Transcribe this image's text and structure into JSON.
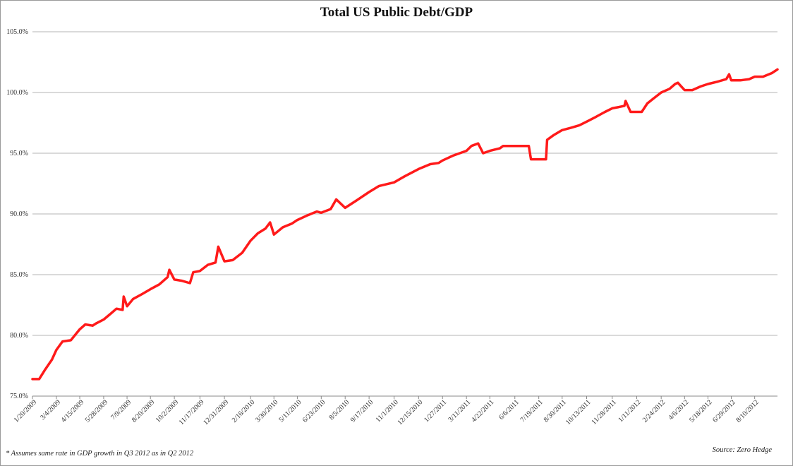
{
  "chart_data": {
    "type": "line",
    "title": "Total US Public Debt/GDP",
    "xlabel": "",
    "ylabel": "",
    "ylim": [
      75,
      105
    ],
    "y_ticks": [
      "75.0%",
      "80.0%",
      "85.0%",
      "90.0%",
      "95.0%",
      "100.0%",
      "105.0%"
    ],
    "x_ticks": [
      "1/20/2009",
      "3/4/2009",
      "4/15/2009",
      "5/28/2009",
      "7/9/2009",
      "8/20/2009",
      "10/2/2009",
      "11/17/2009",
      "12/31/2009",
      "2/16/2010",
      "3/30/2010",
      "5/11/2010",
      "6/23/2010",
      "8/5/2010",
      "9/17/2010",
      "11/1/2010",
      "12/15/2010",
      "1/27/2011",
      "3/11/2011",
      "4/22/2011",
      "6/6/2011",
      "7/19/2011",
      "8/30/2011",
      "10/13/2011",
      "11/28/2011",
      "1/11/2012",
      "2/24/2012",
      "4/6/2012",
      "5/18/2012",
      "6/29/2012",
      "8/10/2012"
    ],
    "grid": true,
    "legend": "none",
    "line_color": "#ff1a1a",
    "series": [
      {
        "x": [
          "1/20/2009",
          "2/1/2009",
          "2/12/2009",
          "2/24/2009",
          "3/4/2009",
          "3/15/2009",
          "3/30/2009",
          "4/15/2009",
          "4/25/2009",
          "5/8/2009",
          "5/15/2009",
          "5/28/2009",
          "6/10/2009",
          "6/20/2009",
          "7/1/2009",
          "7/3/2009",
          "7/9/2009",
          "7/20/2009",
          "8/5/2009",
          "8/20/2009",
          "9/5/2009",
          "9/20/2009",
          "9/23/2009",
          "10/2/2009",
          "10/15/2009",
          "10/30/2009",
          "11/5/2009",
          "11/17/2009",
          "12/1/2009",
          "12/15/2009",
          "12/20/2009",
          "12/31/2009",
          "1/15/2010",
          "2/1/2010",
          "2/16/2010",
          "3/1/2010",
          "3/15/2010",
          "3/23/2010",
          "3/30/2010",
          "4/15/2010",
          "5/1/2010",
          "5/11/2010",
          "5/30/2010",
          "6/15/2010",
          "6/23/2010",
          "7/10/2010",
          "7/20/2010",
          "8/5/2010",
          "8/25/2010",
          "9/17/2010",
          "10/5/2010",
          "11/1/2010",
          "11/20/2010",
          "12/15/2010",
          "1/5/2011",
          "1/20/2011",
          "1/27/2011",
          "2/15/2011",
          "3/11/2011",
          "3/20/2011",
          "4/1/2011",
          "4/10/2011",
          "4/22/2011",
          "5/10/2011",
          "5/16/2011",
          "6/6/2011",
          "7/1/2011",
          "7/5/2011",
          "7/19/2011",
          "8/1/2011",
          "8/3/2011",
          "8/15/2011",
          "8/30/2011",
          "9/15/2011",
          "9/30/2011",
          "10/13/2011",
          "10/30/2011",
          "11/15/2011",
          "11/28/2011",
          "12/10/2011",
          "12/20/2011",
          "12/22/2011",
          "12/31/2011",
          "1/11/2012",
          "1/20/2012",
          "1/30/2012",
          "2/10/2012",
          "2/24/2012",
          "3/10/2012",
          "3/20/2012",
          "3/25/2012",
          "4/6/2012",
          "4/20/2012",
          "5/5/2012",
          "5/18/2012",
          "6/5/2012",
          "6/20/2012",
          "6/25/2012",
          "6/29/2012",
          "7/15/2012",
          "7/31/2012",
          "8/10/2012",
          "8/25/2012",
          "9/10/2012",
          "9/20/2012"
        ],
        "y": [
          76.4,
          76.4,
          77.2,
          78.0,
          78.8,
          79.5,
          79.6,
          80.5,
          80.9,
          80.8,
          81.0,
          81.3,
          81.8,
          82.2,
          82.1,
          83.2,
          82.4,
          83.0,
          83.4,
          83.8,
          84.2,
          84.8,
          85.4,
          84.6,
          84.5,
          84.3,
          85.2,
          85.3,
          85.8,
          86.0,
          87.3,
          86.1,
          86.2,
          86.8,
          87.8,
          88.4,
          88.8,
          89.3,
          88.3,
          88.9,
          89.2,
          89.5,
          89.9,
          90.2,
          90.1,
          90.4,
          91.2,
          90.5,
          91.1,
          91.8,
          92.3,
          92.6,
          93.1,
          93.7,
          94.1,
          94.2,
          94.4,
          94.8,
          95.2,
          95.6,
          95.8,
          95.0,
          95.2,
          95.4,
          95.6,
          95.6,
          95.6,
          94.5,
          94.5,
          94.5,
          96.1,
          96.5,
          96.9,
          97.1,
          97.3,
          97.6,
          98.0,
          98.4,
          98.7,
          98.8,
          98.9,
          99.3,
          98.4,
          98.4,
          98.4,
          99.1,
          99.5,
          100.0,
          100.3,
          100.7,
          100.8,
          100.2,
          100.2,
          100.5,
          100.7,
          100.9,
          101.1,
          101.5,
          101.0,
          101.0,
          101.1,
          101.3,
          101.3,
          101.6,
          101.9
        ]
      }
    ]
  },
  "footnote": "* Assumes same rate in GDP growth in Q3 2012 as in Q2 2012",
  "source": "Source: Zero Hedge"
}
